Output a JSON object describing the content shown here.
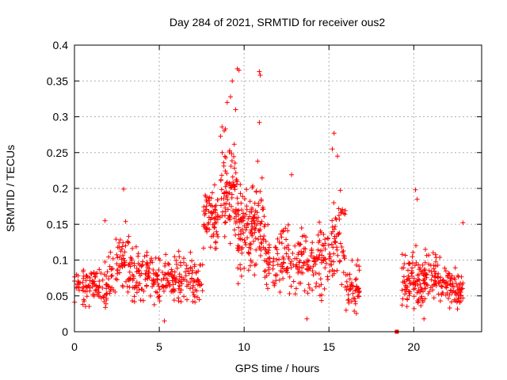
{
  "chart_data": {
    "type": "scatter",
    "title": "Day 284 of 2021, SRMTID for receiver ous2",
    "xlabel": "GPS time / hours",
    "ylabel": "SRMTID / TECUs",
    "xlim": [
      0,
      24
    ],
    "ylim": [
      0,
      0.4
    ],
    "xticks": [
      0,
      5,
      10,
      15,
      20
    ],
    "xtick_labels": [
      "0",
      "5",
      "10",
      "15",
      "20"
    ],
    "yticks": [
      0,
      0.05,
      0.1,
      0.15,
      0.2,
      0.25,
      0.3,
      0.35,
      0.4
    ],
    "ytick_labels": [
      "0",
      "0.05",
      "0.1",
      "0.15",
      "0.2",
      "0.25",
      "0.3",
      "0.35",
      "0.4"
    ],
    "grid": true,
    "marker": "+",
    "color": "#ff0000",
    "zero_marker": {
      "x": 19.0,
      "y": 0.0
    },
    "series": [
      {
        "name": "SRMTID",
        "segments": [
          {
            "x_start": 0.0,
            "x_end": 1.6,
            "base": 0.065,
            "spread": 0.025,
            "count": 80
          },
          {
            "x_start": 1.6,
            "x_end": 2.4,
            "base": 0.07,
            "spread": 0.03,
            "count": 40
          },
          {
            "x_start": 2.4,
            "x_end": 3.4,
            "base": 0.095,
            "spread": 0.04,
            "count": 60
          },
          {
            "x_start": 3.4,
            "x_end": 4.6,
            "base": 0.08,
            "spread": 0.035,
            "count": 70
          },
          {
            "x_start": 4.6,
            "x_end": 6.0,
            "base": 0.07,
            "spread": 0.03,
            "count": 80
          },
          {
            "x_start": 6.0,
            "x_end": 7.6,
            "base": 0.07,
            "spread": 0.035,
            "count": 80
          },
          {
            "x_start": 7.6,
            "x_end": 8.6,
            "base": 0.16,
            "spread": 0.04,
            "count": 70
          },
          {
            "x_start": 8.6,
            "x_end": 9.6,
            "base": 0.2,
            "spread": 0.07,
            "count": 90
          },
          {
            "x_start": 9.6,
            "x_end": 10.4,
            "base": 0.14,
            "spread": 0.06,
            "count": 70
          },
          {
            "x_start": 10.4,
            "x_end": 11.2,
            "base": 0.14,
            "spread": 0.06,
            "count": 70
          },
          {
            "x_start": 11.2,
            "x_end": 12.6,
            "base": 0.1,
            "spread": 0.04,
            "count": 80
          },
          {
            "x_start": 12.6,
            "x_end": 14.0,
            "base": 0.1,
            "spread": 0.04,
            "count": 70
          },
          {
            "x_start": 14.0,
            "x_end": 15.2,
            "base": 0.1,
            "spread": 0.05,
            "count": 70
          },
          {
            "x_start": 15.2,
            "x_end": 16.0,
            "base": 0.13,
            "spread": 0.06,
            "count": 50
          },
          {
            "x_start": 16.0,
            "x_end": 16.8,
            "base": 0.06,
            "spread": 0.03,
            "count": 50
          },
          {
            "x_start": 19.3,
            "x_end": 20.4,
            "base": 0.07,
            "spread": 0.035,
            "count": 80
          },
          {
            "x_start": 20.4,
            "x_end": 21.6,
            "base": 0.075,
            "spread": 0.03,
            "count": 80
          },
          {
            "x_start": 21.6,
            "x_end": 22.9,
            "base": 0.06,
            "spread": 0.025,
            "count": 80
          }
        ],
        "highlights": [
          {
            "x": 9.3,
            "y": 0.35
          },
          {
            "x": 9.6,
            "y": 0.367
          },
          {
            "x": 9.7,
            "y": 0.365
          },
          {
            "x": 10.9,
            "y": 0.363
          },
          {
            "x": 10.95,
            "y": 0.358
          },
          {
            "x": 9.2,
            "y": 0.328
          },
          {
            "x": 9.0,
            "y": 0.32
          },
          {
            "x": 9.5,
            "y": 0.31
          },
          {
            "x": 10.9,
            "y": 0.292
          },
          {
            "x": 8.7,
            "y": 0.286
          },
          {
            "x": 8.9,
            "y": 0.283
          },
          {
            "x": 15.3,
            "y": 0.277
          },
          {
            "x": 10.8,
            "y": 0.238
          },
          {
            "x": 15.2,
            "y": 0.255
          },
          {
            "x": 15.5,
            "y": 0.245
          },
          {
            "x": 12.8,
            "y": 0.219
          },
          {
            "x": 2.9,
            "y": 0.199
          },
          {
            "x": 20.1,
            "y": 0.198
          },
          {
            "x": 20.2,
            "y": 0.185
          },
          {
            "x": 1.8,
            "y": 0.155
          },
          {
            "x": 22.9,
            "y": 0.152
          },
          {
            "x": 16.7,
            "y": 0.1
          },
          {
            "x": 13.7,
            "y": 0.018
          },
          {
            "x": 5.3,
            "y": 0.015
          },
          {
            "x": 20.6,
            "y": 0.018
          }
        ]
      }
    ]
  }
}
